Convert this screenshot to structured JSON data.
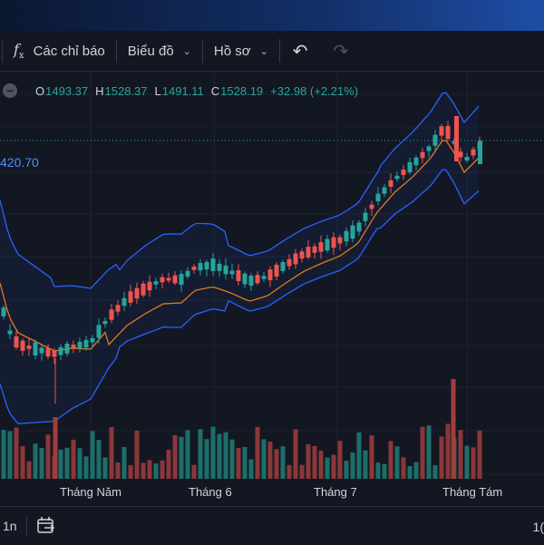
{
  "toolbar": {
    "indicators_label": "Các chỉ báo",
    "chart_label": "Biểu đồ",
    "profile_label": "Hồ sơ"
  },
  "legend": {
    "open_label": "O",
    "open_value": "1493.37",
    "high_label": "H",
    "high_value": "1528.37",
    "low_label": "L",
    "low_value": "1491.11",
    "close_label": "C",
    "close_value": "1528.19",
    "change": "+32.98 (+2.21%)"
  },
  "price_marker": "420.70",
  "xaxis": {
    "labels": [
      "Tháng Năm",
      "Tháng 6",
      "Tháng 7",
      "Tháng Tám"
    ]
  },
  "bottom": {
    "timeframe": "1n",
    "right_text": "1("
  },
  "colors": {
    "up": "#26a69a",
    "down": "#ef5350",
    "band": "#2962ff",
    "ma": "#e07a1f",
    "background": "#131722"
  },
  "chart_data": {
    "type": "candlestick",
    "indicators": [
      "Bollinger Bands",
      "Moving Average"
    ],
    "last_candle": {
      "open": 1493.37,
      "high": 1528.37,
      "low": 1491.11,
      "close": 1528.19
    }
  }
}
